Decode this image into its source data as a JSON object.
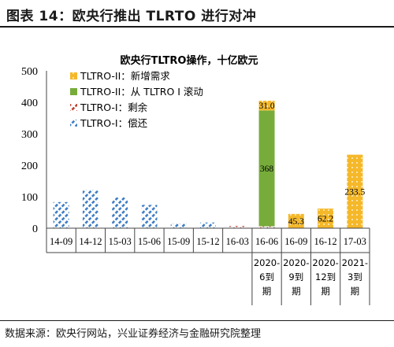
{
  "figure": {
    "title": "图表  14：欧央行推出 TLRTO 进行对冲",
    "source": "数据来源：欧央行网站，兴业证券经济与金融研究院整理"
  },
  "chart_data": {
    "type": "bar",
    "stacked": true,
    "title": "欧央行TLTRO操作，十亿欧元",
    "xlabel": "",
    "ylabel": "",
    "ylim": [
      0,
      500
    ],
    "yticks": [
      0,
      100,
      200,
      300,
      400,
      500
    ],
    "grid": false,
    "legend_position": "top-left",
    "categories": [
      "14-09",
      "14-12",
      "15-03",
      "15-06",
      "15-09",
      "15-12",
      "16-03",
      "16-06",
      "16-09",
      "16-12",
      "17-03"
    ],
    "sublabels": [
      "",
      "",
      "",
      "",
      "",
      "",
      "",
      "2020-6到期",
      "2020-9到期",
      "2020-12到期",
      "2021-3到期"
    ],
    "series": [
      {
        "name": "TLTRO-II：新增需求",
        "color": "#f5b829",
        "pattern": "dots",
        "values": [
          0,
          0,
          0,
          0,
          0,
          0,
          0,
          31.0,
          45.3,
          62.2,
          233.5
        ],
        "labels": [
          "",
          "",
          "",
          "",
          "",
          "",
          "",
          "31.0",
          "45.3",
          "62.2",
          "233.5"
        ]
      },
      {
        "name": "TLTRO-II：从 TLTRO I 滚动",
        "color": "#77ac3b",
        "pattern": "solid",
        "values": [
          0,
          0,
          0,
          0,
          0,
          0,
          0,
          368,
          0,
          0,
          0
        ],
        "labels": [
          "",
          "",
          "",
          "",
          "",
          "",
          "",
          "368",
          "",
          "",
          ""
        ]
      },
      {
        "name": "TLTRO-I：剩余",
        "color": "#c0392b",
        "pattern": "diag-dash",
        "values": [
          0,
          0,
          0,
          0,
          0,
          0,
          5,
          6,
          0,
          0,
          0
        ],
        "labels": [
          "",
          "",
          "",
          "",
          "",
          "",
          "",
          "",
          "",
          "",
          ""
        ]
      },
      {
        "name": "TLTRO-I：偿还",
        "color": "#3e7cc4",
        "pattern": "diag-dash",
        "values": [
          83,
          121,
          98,
          74,
          15,
          18,
          2,
          0,
          0,
          0,
          0
        ],
        "labels": [
          "",
          "",
          "",
          "",
          "",
          "",
          "",
          "",
          "",
          "",
          ""
        ]
      }
    ]
  }
}
